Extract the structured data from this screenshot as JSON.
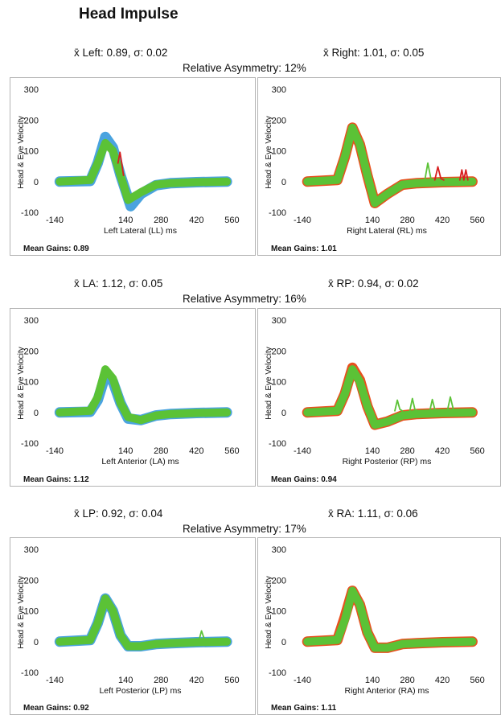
{
  "title": "Head Impulse",
  "colors": {
    "eye": "#5bc236",
    "head_left": "#4aa3df",
    "head_right": "#e8501e",
    "saccade": "#d81f1f"
  },
  "rows": [
    {
      "left_stat": "x̄ Left: 0.89, σ: 0.02",
      "right_stat": "x̄ Right: 1.01, σ: 0.05",
      "asymmetry": "Relative Asymmetry: 12%"
    },
    {
      "left_stat": "x̄ LA: 1.12, σ: 0.05",
      "right_stat": "x̄ RP: 0.94, σ: 0.02",
      "asymmetry": "Relative Asymmetry: 16%"
    },
    {
      "left_stat": "x̄ LP: 0.92, σ: 0.04",
      "right_stat": "x̄ RA: 1.11, σ: 0.06",
      "asymmetry": "Relative Asymmetry: 17%"
    }
  ],
  "chart_data": [
    {
      "type": "line",
      "xlabel": "Left Lateral (LL) ms",
      "ylabel": "Head & Eye Velocity",
      "xlim": [
        -140,
        600
      ],
      "ylim": [
        -100,
        300
      ],
      "xticks": [
        -140,
        140,
        280,
        420,
        560
      ],
      "yticks": [
        -100,
        0,
        100,
        200,
        300
      ],
      "mean_gain": "Mean Gains: 0.89",
      "series": [
        {
          "color": "head_left",
          "x": [
            -120,
            0,
            30,
            60,
            90,
            120,
            160,
            200,
            260,
            320,
            420,
            540
          ],
          "y": [
            0,
            2,
            60,
            145,
            110,
            20,
            -80,
            -40,
            -12,
            -5,
            -2,
            0
          ]
        },
        {
          "color": "eye",
          "x": [
            -120,
            0,
            30,
            60,
            90,
            120,
            150,
            200,
            260,
            320,
            420,
            540
          ],
          "y": [
            0,
            5,
            60,
            125,
            100,
            20,
            -60,
            -35,
            -10,
            -5,
            -2,
            0
          ]
        },
        {
          "color": "saccade",
          "x": [
            110,
            118,
            125,
            132
          ],
          "y": [
            60,
            95,
            60,
            20
          ]
        }
      ],
      "band_width": 10
    },
    {
      "type": "line",
      "xlabel": "Right Lateral (RL) ms",
      "ylabel": "Head & Eye Velocity",
      "xlim": [
        -140,
        600
      ],
      "ylim": [
        -100,
        300
      ],
      "xticks": [
        -140,
        140,
        280,
        420,
        560
      ],
      "yticks": [
        -100,
        0,
        100,
        200,
        300
      ],
      "mean_gain": "Mean Gains: 1.01",
      "series": [
        {
          "color": "head_right",
          "x": [
            -120,
            0,
            30,
            60,
            90,
            120,
            150,
            200,
            260,
            320,
            420,
            540
          ],
          "y": [
            0,
            5,
            80,
            175,
            120,
            20,
            -70,
            -40,
            -10,
            -5,
            -2,
            0
          ]
        },
        {
          "color": "eye",
          "x": [
            -120,
            0,
            30,
            60,
            90,
            120,
            150,
            200,
            260,
            320,
            420,
            540
          ],
          "y": [
            0,
            5,
            80,
            175,
            120,
            20,
            -70,
            -40,
            -10,
            -5,
            -2,
            0
          ]
        },
        {
          "color": "eye",
          "x": [
            350,
            362,
            374,
            386
          ],
          "y": [
            5,
            60,
            10,
            5
          ]
        },
        {
          "color": "saccade",
          "x": [
            390,
            402,
            414,
            426
          ],
          "y": [
            5,
            48,
            10,
            5
          ]
        },
        {
          "color": "saccade",
          "x": [
            490,
            498,
            506,
            514,
            522
          ],
          "y": [
            5,
            38,
            5,
            38,
            5
          ]
        }
      ],
      "band_width": 10
    },
    {
      "type": "line",
      "xlabel": "Left Anterior (LA) ms",
      "ylabel": "Head & Eye Velocity",
      "xlim": [
        -140,
        600
      ],
      "ylim": [
        -100,
        300
      ],
      "xticks": [
        -140,
        140,
        280,
        420,
        560
      ],
      "yticks": [
        -100,
        0,
        100,
        200,
        300
      ],
      "mean_gain": "Mean Gains: 1.12",
      "series": [
        {
          "color": "head_left",
          "x": [
            -120,
            0,
            30,
            60,
            90,
            120,
            150,
            200,
            260,
            320,
            420,
            540
          ],
          "y": [
            0,
            2,
            40,
            120,
            100,
            30,
            -20,
            -25,
            -10,
            -5,
            -2,
            0
          ]
        },
        {
          "color": "eye",
          "x": [
            -120,
            0,
            30,
            60,
            90,
            120,
            150,
            200,
            260,
            320,
            420,
            540
          ],
          "y": [
            0,
            5,
            50,
            140,
            110,
            30,
            -15,
            -25,
            -10,
            -5,
            -2,
            0
          ]
        }
      ],
      "band_width": 10
    },
    {
      "type": "line",
      "xlabel": "Right Posterior (RP) ms",
      "ylabel": "Head & Eye Velocity",
      "xlim": [
        -140,
        600
      ],
      "ylim": [
        -100,
        300
      ],
      "xticks": [
        -140,
        140,
        280,
        420,
        560
      ],
      "yticks": [
        -100,
        0,
        100,
        200,
        300
      ],
      "mean_gain": "Mean Gains: 0.94",
      "series": [
        {
          "color": "head_right",
          "x": [
            -120,
            0,
            30,
            60,
            90,
            120,
            150,
            200,
            260,
            320,
            420,
            540
          ],
          "y": [
            0,
            5,
            60,
            145,
            105,
            20,
            -40,
            -30,
            -10,
            -5,
            -2,
            0
          ]
        },
        {
          "color": "eye",
          "x": [
            -120,
            0,
            30,
            60,
            90,
            120,
            150,
            200,
            260,
            320,
            420,
            540
          ],
          "y": [
            0,
            5,
            60,
            140,
            100,
            20,
            -40,
            -30,
            -10,
            -5,
            -2,
            0
          ]
        },
        {
          "color": "eye",
          "x": [
            230,
            240,
            250,
            260
          ],
          "y": [
            5,
            40,
            10,
            5
          ]
        },
        {
          "color": "eye",
          "x": [
            290,
            300,
            310,
            320
          ],
          "y": [
            5,
            45,
            10,
            5
          ]
        },
        {
          "color": "eye",
          "x": [
            370,
            380,
            390,
            400
          ],
          "y": [
            5,
            42,
            10,
            5
          ]
        },
        {
          "color": "eye",
          "x": [
            440,
            452,
            464,
            476
          ],
          "y": [
            5,
            50,
            10,
            5
          ]
        }
      ],
      "band_width": 10
    },
    {
      "type": "line",
      "xlabel": "Left Posterior (LP) ms",
      "ylabel": "Head & Eye Velocity",
      "xlim": [
        -140,
        600
      ],
      "ylim": [
        -100,
        300
      ],
      "xticks": [
        -140,
        140,
        280,
        420,
        560
      ],
      "yticks": [
        -100,
        0,
        100,
        200,
        300
      ],
      "mean_gain": "Mean Gains: 0.92",
      "series": [
        {
          "color": "head_left",
          "x": [
            -120,
            0,
            30,
            60,
            90,
            120,
            150,
            200,
            260,
            320,
            420,
            540
          ],
          "y": [
            0,
            5,
            60,
            140,
            100,
            20,
            -15,
            -15,
            -8,
            -5,
            -2,
            0
          ]
        },
        {
          "color": "eye",
          "x": [
            -120,
            0,
            30,
            60,
            90,
            120,
            150,
            200,
            260,
            320,
            420,
            540
          ],
          "y": [
            0,
            5,
            60,
            140,
            100,
            20,
            -15,
            -15,
            -8,
            -5,
            -2,
            0
          ]
        },
        {
          "color": "eye",
          "x": [
            430,
            440,
            450,
            460
          ],
          "y": [
            5,
            35,
            10,
            5
          ]
        }
      ],
      "band_width": 10
    },
    {
      "type": "line",
      "xlabel": "Right Anterior (RA) ms",
      "ylabel": "Head & Eye Velocity",
      "xlim": [
        -140,
        600
      ],
      "ylim": [
        -100,
        300
      ],
      "xticks": [
        -140,
        140,
        280,
        420,
        560
      ],
      "yticks": [
        -100,
        0,
        100,
        200,
        300
      ],
      "mean_gain": "Mean Gains: 1.11",
      "series": [
        {
          "color": "head_right",
          "x": [
            -120,
            0,
            30,
            60,
            90,
            120,
            150,
            200,
            260,
            320,
            420,
            540
          ],
          "y": [
            0,
            5,
            80,
            165,
            120,
            30,
            -20,
            -20,
            -8,
            -5,
            -2,
            0
          ]
        },
        {
          "color": "eye",
          "x": [
            -120,
            0,
            30,
            60,
            90,
            120,
            150,
            200,
            260,
            320,
            420,
            540
          ],
          "y": [
            0,
            5,
            70,
            165,
            120,
            30,
            -20,
            -20,
            -8,
            -5,
            -2,
            0
          ]
        }
      ],
      "band_width": 10
    }
  ]
}
